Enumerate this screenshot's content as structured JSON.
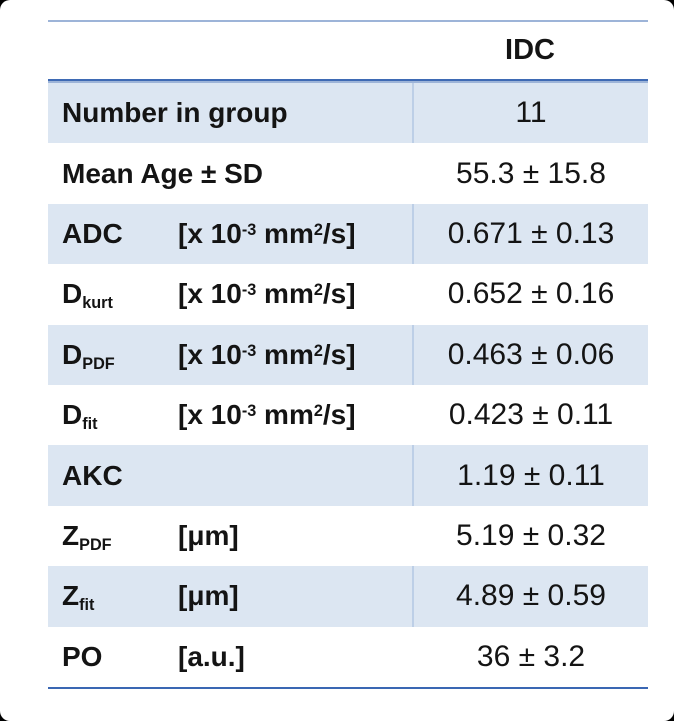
{
  "window": {
    "page_bg": "#000000",
    "card_bg": "#ffffff"
  },
  "colors": {
    "row-shade": "#dce6f2",
    "divider": "#bdcfe7",
    "line-top": "#9db4d8",
    "line-header-dark": "#3e6ab4",
    "line-header-light": "#9db4d8",
    "line-bottom": "#3a67b3",
    "text": "#141414"
  },
  "table": {
    "column_header": "IDC",
    "rows": [
      {
        "label": [
          [
            "t",
            "Number in group"
          ]
        ],
        "unit": [],
        "value": "11",
        "shaded": true
      },
      {
        "label": [
          [
            "t",
            "Mean Age ± SD"
          ]
        ],
        "unit": [],
        "value": "55.3 ± 15.8",
        "shaded": false
      },
      {
        "label": [
          [
            "t",
            "ADC"
          ]
        ],
        "unit": [
          [
            "t",
            "[x 10"
          ],
          [
            "sup",
            "-3"
          ],
          [
            "t",
            " mm"
          ],
          [
            "sup",
            "2"
          ],
          [
            "t",
            "/s]"
          ]
        ],
        "value": "0.671 ± 0.13",
        "shaded": true
      },
      {
        "label": [
          [
            "t",
            "D"
          ],
          [
            "sub",
            "kurt"
          ]
        ],
        "unit": [
          [
            "t",
            "[x 10"
          ],
          [
            "sup",
            "-3"
          ],
          [
            "t",
            " mm"
          ],
          [
            "sup",
            "2"
          ],
          [
            "t",
            "/s]"
          ]
        ],
        "value": "0.652 ± 0.16",
        "shaded": false
      },
      {
        "label": [
          [
            "t",
            "D"
          ],
          [
            "sub",
            "PDF"
          ]
        ],
        "unit": [
          [
            "t",
            "[x 10"
          ],
          [
            "sup",
            "-3"
          ],
          [
            "t",
            " mm"
          ],
          [
            "sup",
            "2"
          ],
          [
            "t",
            "/s]"
          ]
        ],
        "value": "0.463 ± 0.06",
        "shaded": true
      },
      {
        "label": [
          [
            "t",
            "D"
          ],
          [
            "sub",
            "fit"
          ]
        ],
        "unit": [
          [
            "t",
            "[x 10"
          ],
          [
            "sup",
            "-3"
          ],
          [
            "t",
            " mm"
          ],
          [
            "sup",
            "2"
          ],
          [
            "t",
            "/s]"
          ]
        ],
        "value": "0.423 ± 0.11",
        "shaded": false
      },
      {
        "label": [
          [
            "t",
            "AKC"
          ]
        ],
        "unit": [],
        "value": "1.19 ± 0.11",
        "shaded": true
      },
      {
        "label": [
          [
            "t",
            "Z"
          ],
          [
            "sub",
            "PDF"
          ]
        ],
        "unit": [
          [
            "t",
            "[μm]"
          ]
        ],
        "value": "5.19 ± 0.32",
        "shaded": false
      },
      {
        "label": [
          [
            "t",
            "Z"
          ],
          [
            "sub",
            "fit"
          ]
        ],
        "unit": [
          [
            "t",
            "[μm]"
          ]
        ],
        "value": "4.89 ± 0.59",
        "shaded": true
      },
      {
        "label": [
          [
            "t",
            "PO"
          ]
        ],
        "unit": [
          [
            "t",
            "[a.u.]"
          ]
        ],
        "value": "36 ± 3.2",
        "shaded": false
      }
    ]
  }
}
